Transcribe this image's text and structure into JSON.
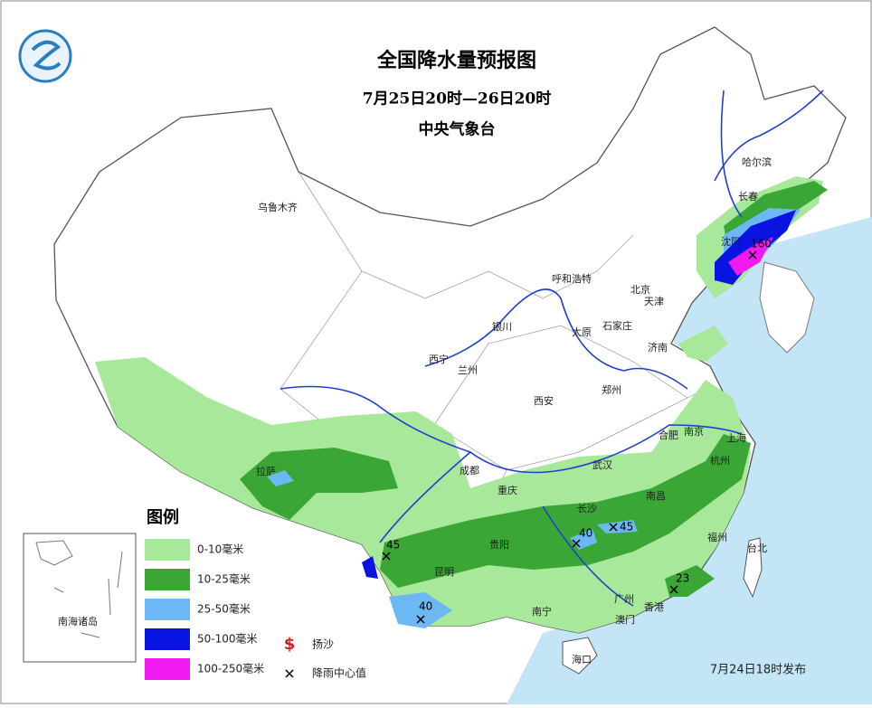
{
  "header": {
    "title": "全国降水量预报图",
    "subtitle": "7月25日20时—26日20时",
    "issuer": "中央气象台"
  },
  "cities": [
    "乌鲁木齐",
    "哈尔滨",
    "长春",
    "沈阳",
    "呼和浩特",
    "北京",
    "天津",
    "石家庄",
    "银川",
    "太原",
    "济南",
    "西宁",
    "兰州",
    "郑州",
    "西安",
    "合肥",
    "南京",
    "上海",
    "成都",
    "武汉",
    "杭州",
    "拉萨",
    "重庆",
    "长沙",
    "南昌",
    "贵阳",
    "福州",
    "昆明",
    "台北",
    "南宁",
    "广州",
    "香港",
    "澳门",
    "海口"
  ],
  "rain_centers": [
    {
      "value": 160
    },
    {
      "value": 45
    },
    {
      "value": 40
    },
    {
      "value": 45
    },
    {
      "value": 40
    },
    {
      "value": 23
    }
  ],
  "legend": {
    "title": "图例",
    "items": [
      {
        "label": "0-10毫米",
        "color": "#a8e89a"
      },
      {
        "label": "10-25毫米",
        "color": "#3aa635"
      },
      {
        "label": "25-50毫米",
        "color": "#6cb8f5"
      },
      {
        "label": "50-100毫米",
        "color": "#0a14e0"
      },
      {
        "label": "100-250毫米",
        "color": "#f019f0"
      }
    ],
    "symbols": [
      {
        "label": "扬沙",
        "color": "#d02020"
      },
      {
        "label": "降雨中心值"
      }
    ]
  },
  "inset": {
    "label": "南海诸岛"
  },
  "footer": "7月24日18时发布"
}
